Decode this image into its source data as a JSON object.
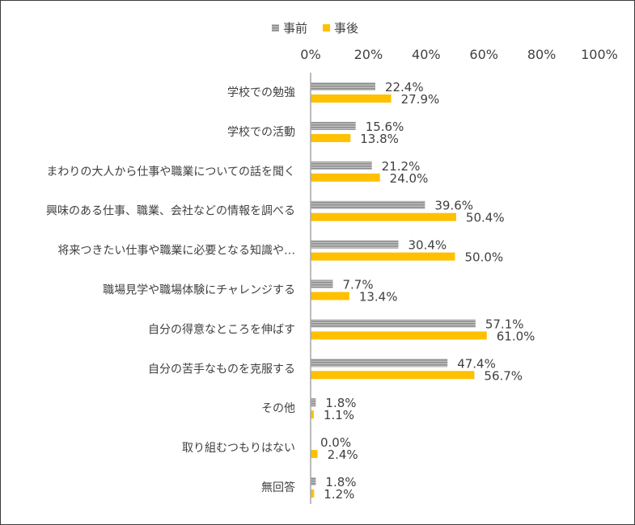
{
  "chart_data": {
    "type": "bar",
    "orientation": "horizontal",
    "categories": [
      "学校での勉強",
      "学校での活動",
      "まわりの大人から仕事や職業についての話を聞く",
      "興味のある仕事、職業、会社などの情報を調べる",
      "将来つきたい仕事や職業に必要となる知識や…",
      "職場見学や職場体験にチャレンジする",
      "自分の得意なところを伸ばす",
      "自分の苦手なものを克服する",
      "その他",
      "取り組むつもりはない",
      "無回答"
    ],
    "series": [
      {
        "name": "事前",
        "color": "#a6a6a6",
        "pattern": "horizontal-stripes",
        "values": [
          22.4,
          15.6,
          21.2,
          39.6,
          30.4,
          7.7,
          57.1,
          47.4,
          1.8,
          0.0,
          1.8
        ],
        "labels": [
          "22.4%",
          "15.6%",
          "21.2%",
          "39.6%",
          "30.4%",
          "7.7%",
          "57.1%",
          "47.4%",
          "1.8%",
          "0.0%",
          "1.8%"
        ]
      },
      {
        "name": "事後",
        "color": "#ffc000",
        "pattern": "solid",
        "values": [
          27.9,
          13.8,
          24.0,
          50.4,
          50.0,
          13.4,
          61.0,
          56.7,
          1.1,
          2.4,
          1.2
        ],
        "labels": [
          "27.9%",
          "13.8%",
          "24.0%",
          "50.4%",
          "50.0%",
          "13.4%",
          "61.0%",
          "56.7%",
          "1.1%",
          "2.4%",
          "1.2%"
        ]
      }
    ],
    "xlim": [
      0,
      100
    ],
    "xticks": [
      "0%",
      "20%",
      "40%",
      "60%",
      "80%",
      "100%"
    ],
    "legend_position": "top",
    "grid": false,
    "title": "",
    "xlabel": "",
    "ylabel": ""
  }
}
